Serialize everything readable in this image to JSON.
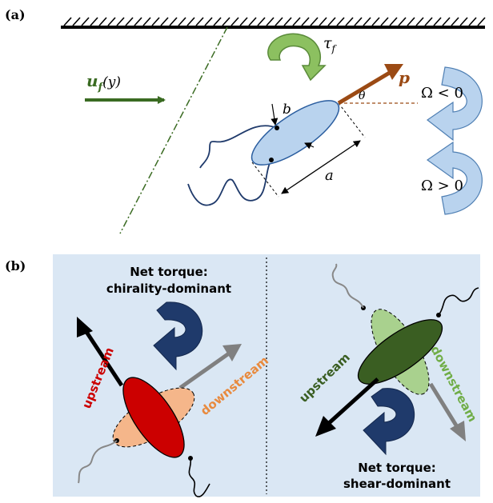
{
  "panel_a": {
    "label": "(a)",
    "flow_label": "u",
    "flow_sub": "f",
    "flow_arg": "(y)",
    "torque_label": "τ",
    "torque_sub": "f",
    "orientation_label": "p",
    "angle_label": "θ",
    "minor_axis_label": "b",
    "major_axis_label": "a",
    "omega_negative": "Ω < 0",
    "omega_positive": "Ω > 0"
  },
  "panel_b": {
    "label": "(b)",
    "left": {
      "torque_title_line1": "Net torque:",
      "torque_title_line2": "chirality-dominant",
      "upstream": "upstream",
      "downstream": "downstream"
    },
    "right": {
      "torque_title_line1": "Net torque:",
      "torque_title_line2": "shear-dominant",
      "upstream": "upstream",
      "downstream": "downstream"
    }
  },
  "colors": {
    "flow_green": "#3a6b22",
    "torque_green": "#8cc060",
    "orientation_brown": "#9b4a14",
    "body_blue": "#b9d3ee",
    "omega_blue": "#8db0d4",
    "panel_bg": "#dae7f4",
    "torque_navy": "#1f3a6b",
    "upstream_red": "#cc0000",
    "downstream_orange": "#e88a3e",
    "dark_green": "#3a5e22",
    "light_green": "#a9d18e"
  }
}
